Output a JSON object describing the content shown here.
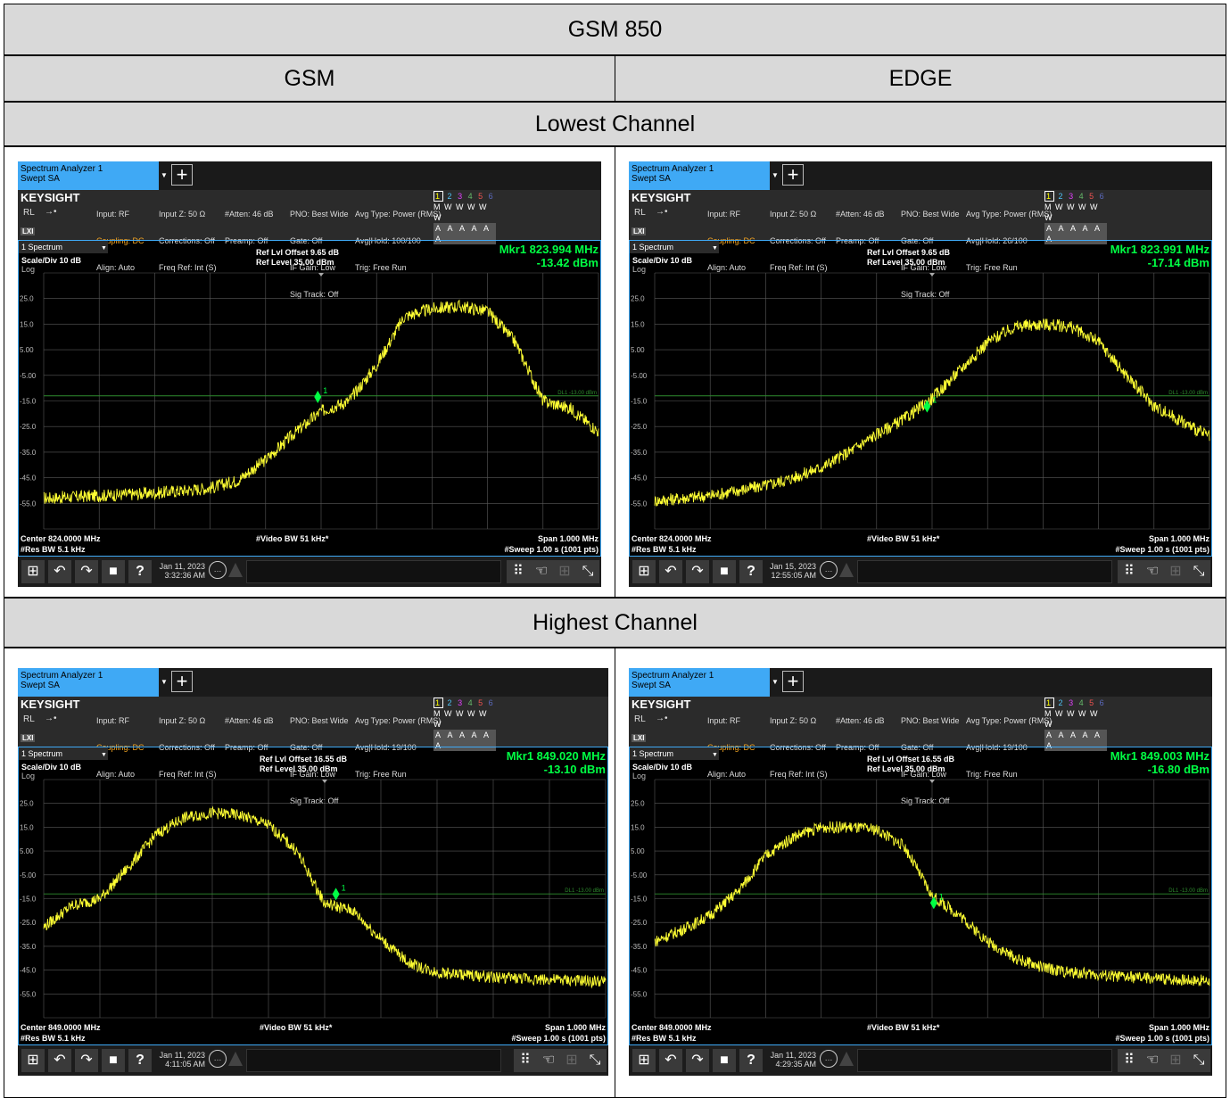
{
  "table": {
    "band_title": "GSM 850",
    "col_gsm": "GSM",
    "col_edge": "EDGE",
    "row_lowest": "Lowest Channel",
    "row_highest": "Highest Channel"
  },
  "common": {
    "tab_title": "Spectrum Analyzer 1",
    "tab_subtitle": "Swept SA",
    "brand": "KEYSIGHT",
    "rl": "RL",
    "lxi": "LXI",
    "input": "Input: RF",
    "coupling": "Coupling: DC",
    "align": "Align: Auto",
    "input_z": "Input Z: 50 Ω",
    "corrections": "Corrections: Off",
    "freq_ref": "Freq Ref: Int (S)",
    "atten": "#Atten: 46 dB",
    "preamp": "Preamp: Off",
    "pno": "PNO: Best Wide",
    "gate": "Gate: Off",
    "if_gain": "IF Gain: Low",
    "sig_track": "Sig Track: Off",
    "avg_type": "Avg Type: Power (RMS)",
    "trig": "Trig: Free Run",
    "trace_nums": [
      "1",
      "2",
      "3",
      "4",
      "5",
      "6"
    ],
    "trace_modes": "M W W W W W",
    "trace_dets": "A A A A A A",
    "window_name": "1 Spectrum",
    "scale": "Scale/Div 10 dB",
    "log": "Log",
    "ref_level": "Ref Level 35.00 dBm",
    "video_bw": "#Video BW 51 kHz*",
    "res_bw": "#Res BW 5.1 kHz",
    "span": "Span 1.000 MHz",
    "sweep": "#Sweep 1.00 s (1001 pts)",
    "display_line": "DL1 -13.00 dBm",
    "marker_label": "1",
    "y_ticks": [
      "25.0",
      "15.0",
      "5.00",
      "-5.00",
      "-15.0",
      "-25.0",
      "-35.0",
      "-45.0",
      "-55.0"
    ],
    "colors": {
      "trace": "#ffff33",
      "marker": "#00ff44",
      "display_line": "#2e8b2e",
      "grid": "#5a5a5a",
      "frame": "#3fa9f5",
      "tab": "#3fa9f5"
    }
  },
  "screens": [
    {
      "id": "gsm-lowest",
      "avg_hold": "Avg|Hold: 100/100",
      "ref_offset": "Ref Lvl Offset 9.65 dB",
      "marker_freq": "Mkr1  823.994 MHz",
      "marker_level": "-13.42 dBm",
      "center": "Center 824.0000 MHz",
      "date": "Jan 11, 2023",
      "time": "3:32:36 AM",
      "chart_data": {
        "type": "line",
        "xlabel": "",
        "ylabel": "",
        "xlim": [
          823.5,
          824.5
        ],
        "ylim": [
          -65,
          35
        ],
        "x": [
          823.5,
          823.55,
          823.6,
          823.65,
          823.7,
          823.75,
          823.8,
          823.85,
          823.9,
          823.95,
          824.0,
          824.05,
          824.1,
          824.15,
          824.2,
          824.25,
          824.3,
          824.35,
          824.4,
          824.45,
          824.5
        ],
        "y": [
          -53,
          -52.5,
          -52,
          -51.5,
          -51,
          -50,
          -49,
          -46,
          -38,
          -28,
          -19,
          -15,
          -1,
          18,
          21,
          22,
          20,
          8,
          -15,
          -18,
          -27
        ],
        "display_line": -13,
        "marker": {
          "x": 823.994,
          "y": -13.42
        }
      }
    },
    {
      "id": "edge-lowest",
      "avg_hold": "Avg|Hold: 26/100",
      "ref_offset": "Ref Lvl Offset 9.65 dB",
      "marker_freq": "Mkr1  823.991 MHz",
      "marker_level": "-17.14 dBm",
      "center": "Center 824.0000 MHz",
      "date": "Jan 15, 2023",
      "time": "12:55:05 AM",
      "chart_data": {
        "type": "line",
        "xlabel": "",
        "ylabel": "",
        "xlim": [
          823.5,
          824.5
        ],
        "ylim": [
          -65,
          35
        ],
        "x": [
          823.5,
          823.55,
          823.6,
          823.65,
          823.7,
          823.75,
          823.8,
          823.85,
          823.9,
          823.95,
          824.0,
          824.05,
          824.1,
          824.15,
          824.2,
          824.25,
          824.3,
          824.35,
          824.4,
          824.45,
          824.5
        ],
        "y": [
          -54,
          -53,
          -52,
          -50,
          -48,
          -45,
          -41,
          -35,
          -28,
          -22,
          -14,
          -3,
          8,
          14,
          15,
          14,
          8,
          -5,
          -17,
          -23,
          -29
        ],
        "display_line": -13,
        "marker": {
          "x": 823.991,
          "y": -17.14
        }
      }
    },
    {
      "id": "gsm-highest",
      "avg_hold": "Avg|Hold: 19/100",
      "ref_offset": "Ref Lvl Offset 16.55 dB",
      "marker_freq": "Mkr1  849.020 MHz",
      "marker_level": "-13.10 dBm",
      "center": "Center 849.0000 MHz",
      "date": "Jan 11, 2023",
      "time": "4:11:05 AM",
      "chart_data": {
        "type": "line",
        "xlabel": "",
        "ylabel": "",
        "xlim": [
          848.5,
          849.5
        ],
        "ylim": [
          -65,
          35
        ],
        "x": [
          848.5,
          848.55,
          848.6,
          848.65,
          848.7,
          848.75,
          848.8,
          848.85,
          848.9,
          848.95,
          849.0,
          849.05,
          849.1,
          849.15,
          849.2,
          849.25,
          849.3,
          849.35,
          849.4,
          849.45,
          849.5
        ],
        "y": [
          -27,
          -18,
          -15,
          -2,
          12,
          19,
          21,
          20,
          16,
          5,
          -17,
          -20,
          -32,
          -42,
          -46,
          -47,
          -48,
          -48.5,
          -49,
          -49.5,
          -50
        ],
        "display_line": -13,
        "marker": {
          "x": 849.02,
          "y": -13.1
        }
      }
    },
    {
      "id": "edge-highest",
      "avg_hold": "Avg|Hold: 19/100",
      "ref_offset": "Ref Lvl Offset 16.55 dB",
      "marker_freq": "Mkr1  849.003 MHz",
      "marker_level": "-16.80 dBm",
      "center": "Center 849.0000 MHz",
      "date": "Jan 11, 2023",
      "time": "4:29:35 AM",
      "chart_data": {
        "type": "line",
        "xlabel": "",
        "ylabel": "",
        "xlim": [
          848.5,
          849.5
        ],
        "ylim": [
          -65,
          35
        ],
        "x": [
          848.5,
          848.55,
          848.6,
          848.65,
          848.7,
          848.75,
          848.8,
          848.85,
          848.9,
          848.95,
          849.0,
          849.05,
          849.1,
          849.15,
          849.2,
          849.25,
          849.3,
          849.35,
          849.4,
          849.45,
          849.5
        ],
        "y": [
          -33,
          -28,
          -22,
          -12,
          3,
          11,
          15,
          15,
          14,
          7,
          -14,
          -22,
          -33,
          -40,
          -44,
          -46,
          -47,
          -48,
          -48.5,
          -49,
          -49.5
        ],
        "display_line": -13,
        "marker": {
          "x": 849.003,
          "y": -16.8
        }
      }
    }
  ]
}
